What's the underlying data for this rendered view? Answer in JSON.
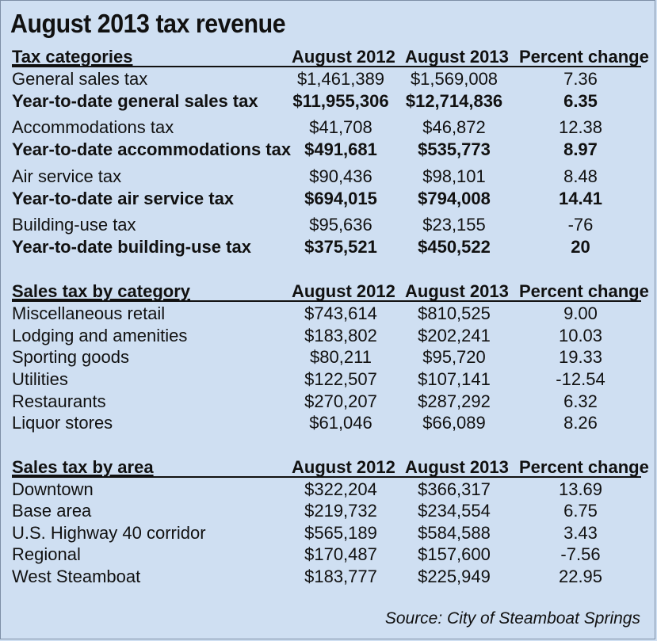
{
  "chart_data": {
    "type": "table",
    "title": "August 2013 tax revenue",
    "source": "Source: City of Steamboat Springs",
    "sections": [
      {
        "header": [
          "Tax categories",
          "August 2012",
          "August 2013",
          "Percent change"
        ],
        "rows": [
          {
            "label": "General sales tax",
            "v2012": "$1,461,389",
            "v2013": "$1,569,008",
            "pct": "7.36",
            "bold": false
          },
          {
            "label": "Year-to-date general sales tax",
            "v2012": "$11,955,306",
            "v2013": "$12,714,836",
            "pct": "6.35",
            "bold": true
          },
          {
            "label": "Accommodations tax",
            "v2012": "$41,708",
            "v2013": "$46,872",
            "pct": "12.38",
            "bold": false
          },
          {
            "label": "Year-to-date accommodations tax",
            "v2012": "$491,681",
            "v2013": "$535,773",
            "pct": "8.97",
            "bold": true
          },
          {
            "label": "Air service tax",
            "v2012": "$90,436",
            "v2013": "$98,101",
            "pct": "8.48",
            "bold": false
          },
          {
            "label": "Year-to-date air service tax",
            "v2012": "$694,015",
            "v2013": "$794,008",
            "pct": "14.41",
            "bold": true
          },
          {
            "label": "Building-use tax",
            "v2012": "$95,636",
            "v2013": "$23,155",
            "pct": "-76",
            "bold": false
          },
          {
            "label": "Year-to-date building-use tax",
            "v2012": "$375,521",
            "v2013": "$450,522",
            "pct": "20",
            "bold": true
          }
        ]
      },
      {
        "header": [
          "Sales tax by category",
          "August 2012",
          "August 2013",
          "Percent change"
        ],
        "rows": [
          {
            "label": "Miscellaneous retail",
            "v2012": "$743,614",
            "v2013": "$810,525",
            "pct": "9.00",
            "bold": false
          },
          {
            "label": "Lodging and amenities",
            "v2012": "$183,802",
            "v2013": "$202,241",
            "pct": "10.03",
            "bold": false
          },
          {
            "label": "Sporting goods",
            "v2012": "$80,211",
            "v2013": "$95,720",
            "pct": "19.33",
            "bold": false
          },
          {
            "label": "Utilities",
            "v2012": "$122,507",
            "v2013": "$107,141",
            "pct": "-12.54",
            "bold": false
          },
          {
            "label": "Restaurants",
            "v2012": "$270,207",
            "v2013": "$287,292",
            "pct": "6.32",
            "bold": false
          },
          {
            "label": "Liquor stores",
            "v2012": "$61,046",
            "v2013": "$66,089",
            "pct": "8.26",
            "bold": false
          }
        ]
      },
      {
        "header": [
          "Sales tax by area",
          "August 2012",
          "August 2013",
          "Percent change"
        ],
        "rows": [
          {
            "label": "Downtown",
            "v2012": "$322,204",
            "v2013": "$366,317",
            "pct": "13.69",
            "bold": false
          },
          {
            "label": "Base area",
            "v2012": "$219,732",
            "v2013": "$234,554",
            "pct": "6.75",
            "bold": false
          },
          {
            "label": "U.S. Highway 40 corridor",
            "v2012": "$565,189",
            "v2013": "$584,588",
            "pct": "3.43",
            "bold": false
          },
          {
            "label": "Regional",
            "v2012": "$170,487",
            "v2013": "$157,600",
            "pct": "-7.56",
            "bold": false
          },
          {
            "label": "West Steamboat",
            "v2012": "$183,777",
            "v2013": "$225,949",
            "pct": "22.95",
            "bold": false
          }
        ]
      }
    ]
  }
}
